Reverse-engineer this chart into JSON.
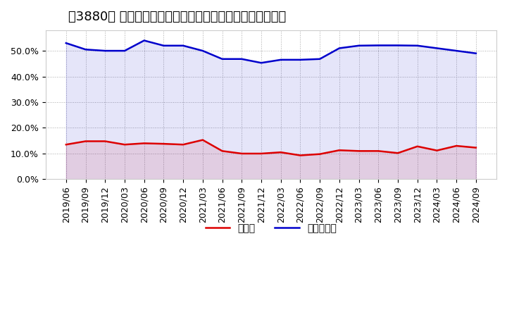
{
  "title": "［3880］ 現預金、有利子負債の総資産に対する比率の推移",
  "x_labels": [
    "2019/06",
    "2019/09",
    "2019/12",
    "2020/03",
    "2020/06",
    "2020/09",
    "2020/12",
    "2021/03",
    "2021/06",
    "2021/09",
    "2021/12",
    "2022/03",
    "2022/06",
    "2022/09",
    "2022/12",
    "2023/03",
    "2023/06",
    "2023/09",
    "2023/12",
    "2024/03",
    "2024/06",
    "2024/09"
  ],
  "cash_values": [
    0.135,
    0.148,
    0.148,
    0.135,
    0.14,
    0.138,
    0.135,
    0.153,
    0.11,
    0.1,
    0.1,
    0.105,
    0.093,
    0.098,
    0.113,
    0.11,
    0.11,
    0.102,
    0.128,
    0.112,
    0.13,
    0.123
  ],
  "debt_values": [
    0.53,
    0.505,
    0.5,
    0.5,
    0.54,
    0.52,
    0.52,
    0.5,
    0.468,
    0.468,
    0.453,
    0.465,
    0.465,
    0.468,
    0.51,
    0.52,
    0.521,
    0.521,
    0.52,
    0.51,
    0.5,
    0.49
  ],
  "cash_color": "#dd0000",
  "debt_color": "#0000cc",
  "background_color": "#ffffff",
  "plot_bg_color": "#ffffff",
  "grid_color": "#aaaaaa",
  "y_ticks": [
    0.0,
    0.1,
    0.2,
    0.3,
    0.4,
    0.5
  ],
  "ylim": [
    0.0,
    0.58
  ],
  "legend_cash": "現預金",
  "legend_debt": "有利子負債",
  "title_fontsize": 13,
  "tick_fontsize": 9,
  "legend_fontsize": 10,
  "line_width": 1.8
}
